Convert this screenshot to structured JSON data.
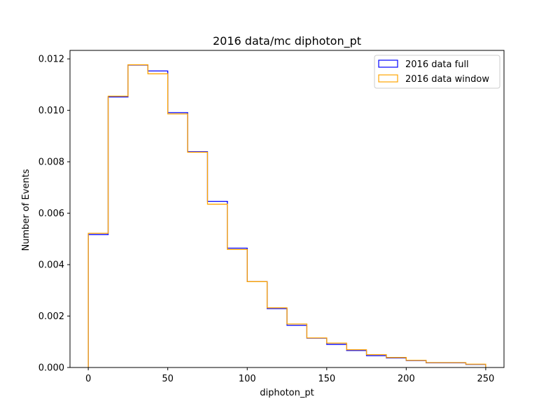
{
  "chart_data": {
    "type": "histogram-step",
    "title": "2016 data/mc diphoton_pt",
    "xlabel": "diphoton_pt",
    "ylabel": "Number of Events",
    "xlim": [
      -11.5,
      261.5
    ],
    "ylim": [
      0.0,
      0.01233
    ],
    "bin_edges": [
      0,
      12.5,
      25,
      37.5,
      50,
      62.5,
      75,
      87.5,
      100,
      112.5,
      125,
      137.5,
      150,
      162.5,
      175,
      187.5,
      200,
      212.5,
      225,
      237.5,
      250
    ],
    "x_ticks": [
      0,
      50,
      100,
      150,
      200,
      250
    ],
    "x_tick_labels": [
      "0",
      "50",
      "100",
      "150",
      "200",
      "250"
    ],
    "y_ticks": [
      0.0,
      0.002,
      0.004,
      0.006,
      0.008,
      0.01,
      0.012
    ],
    "y_tick_labels": [
      "0.000",
      "0.002",
      "0.004",
      "0.006",
      "0.008",
      "0.010",
      "0.012"
    ],
    "legend_position": "top-right",
    "series": [
      {
        "name": "2016 data full",
        "color": "#0000ff",
        "values": [
          0.00517,
          0.01052,
          0.01176,
          0.01153,
          0.00991,
          0.00839,
          0.00646,
          0.00464,
          0.00334,
          0.00229,
          0.00164,
          0.00114,
          0.0009,
          0.00066,
          0.00046,
          0.00037,
          0.00027,
          0.00018,
          0.00018,
          0.00012
        ]
      },
      {
        "name": "2016 data window",
        "color": "#ffa500",
        "values": [
          0.00522,
          0.01055,
          0.01177,
          0.01142,
          0.00986,
          0.00837,
          0.00635,
          0.00459,
          0.00334,
          0.00232,
          0.00169,
          0.00115,
          0.00095,
          0.00069,
          0.0005,
          0.00039,
          0.00028,
          0.00019,
          0.00019,
          0.00013
        ]
      }
    ]
  }
}
